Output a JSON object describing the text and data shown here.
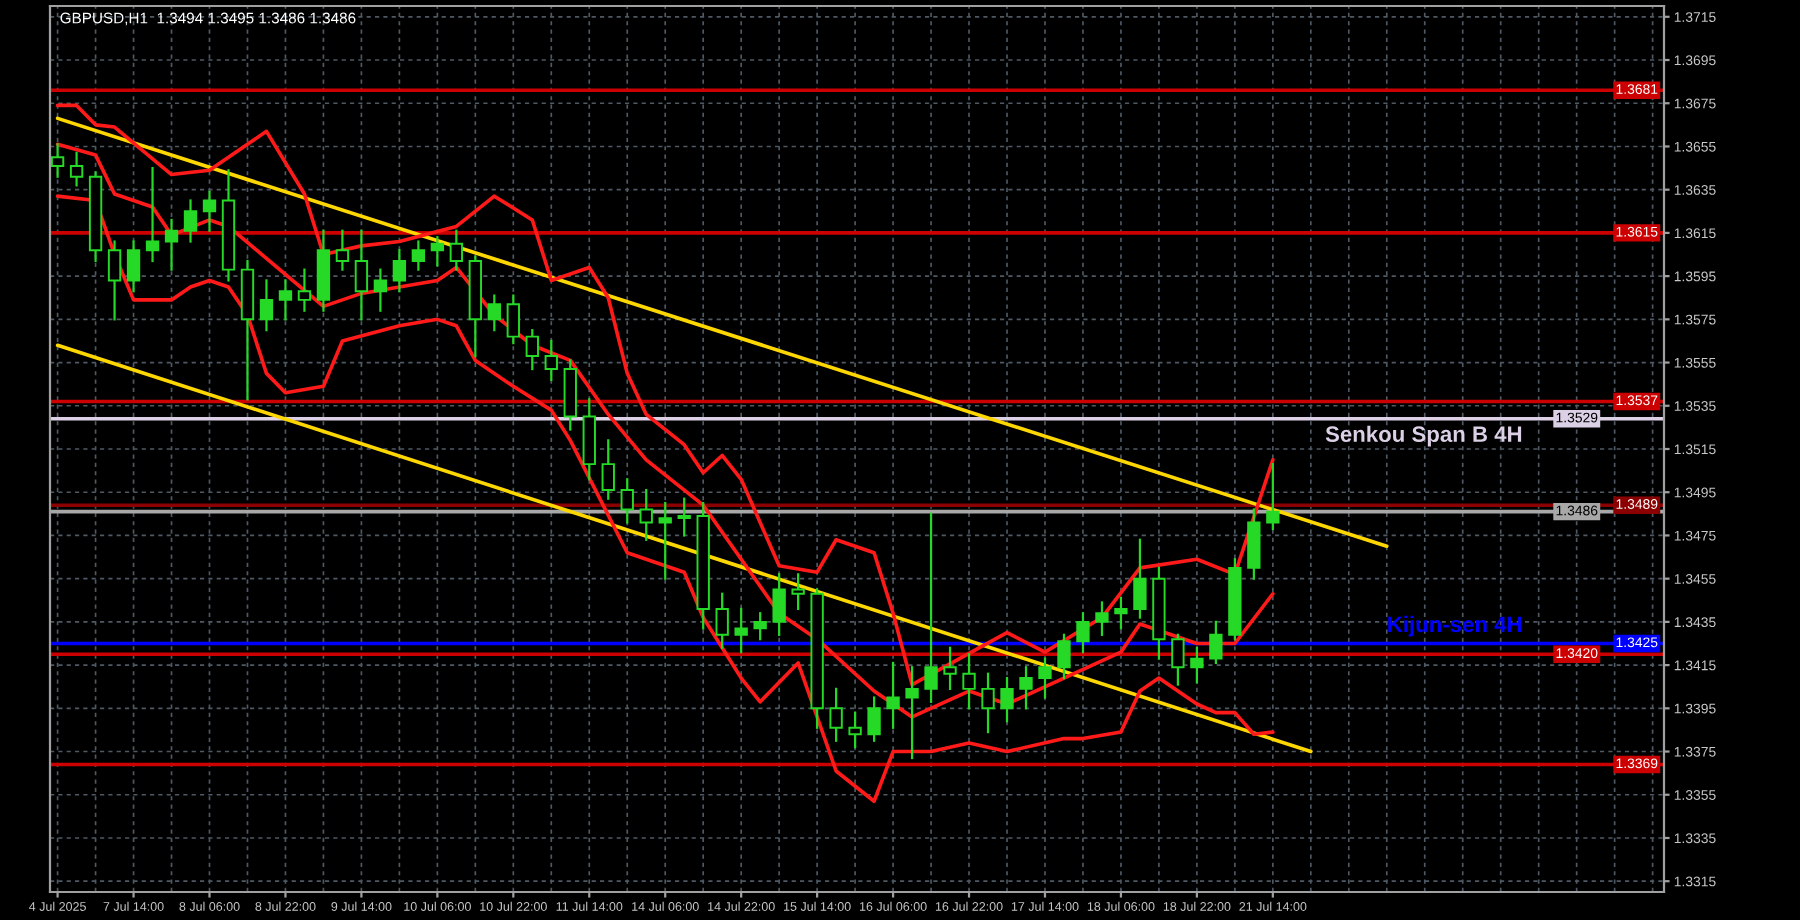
{
  "chart_data": {
    "type": "candlestick",
    "title": "GBPUSD,H1  1.3494 1.3495 1.3486 1.3486",
    "color": "#26d926",
    "categories": [
      "4 Jul 2025",
      null,
      null,
      null,
      "7 Jul 14:00",
      null,
      null,
      null,
      "8 Jul 06:00",
      null,
      null,
      null,
      "8 Jul 22:00",
      null,
      null,
      null,
      "9 Jul 14:00",
      null,
      null,
      null,
      "10 Jul 06:00",
      null,
      null,
      null,
      "10 Jul 22:00",
      null,
      null,
      null,
      "11 Jul 14:00",
      null,
      null,
      null,
      "14 Jul 06:00",
      null,
      null,
      null,
      "14 Jul 22:00",
      null,
      null,
      null,
      "15 Jul 14:00",
      null,
      null,
      null,
      "16 Jul 06:00",
      null,
      null,
      null,
      "16 Jul 22:00",
      null,
      null,
      null,
      "17 Jul 14:00",
      null,
      null,
      null,
      "18 Jul 06:00",
      null,
      null,
      null,
      "18 Jul 22:00",
      null,
      null,
      null,
      "21 Jul 14:00",
      null,
      null,
      null,
      null,
      null,
      null,
      null,
      null,
      null,
      null,
      null,
      null,
      null,
      null,
      null,
      null,
      null,
      null,
      null,
      null
    ],
    "ohlc": [
      [
        1.365,
        1.3656,
        1.3641,
        1.3646
      ],
      [
        1.3646,
        1.3652,
        1.3637,
        1.3641
      ],
      [
        1.3641,
        1.3643,
        1.3602,
        1.3607
      ],
      [
        1.3607,
        1.3611,
        1.3575,
        1.3593
      ],
      [
        1.3593,
        1.3611,
        1.3588,
        1.3607
      ],
      [
        1.3607,
        1.3645,
        1.3602,
        1.3611
      ],
      [
        1.3611,
        1.3621,
        1.3598,
        1.3616
      ],
      [
        1.3616,
        1.363,
        1.3611,
        1.3625
      ],
      [
        1.3625,
        1.3634,
        1.3616,
        1.363
      ],
      [
        1.363,
        1.3644,
        1.3593,
        1.3598
      ],
      [
        1.3598,
        1.3602,
        1.3538,
        1.3575
      ],
      [
        1.3575,
        1.3593,
        1.357,
        1.3584
      ],
      [
        1.3584,
        1.3593,
        1.3575,
        1.3588
      ],
      [
        1.3588,
        1.3598,
        1.3579,
        1.3584
      ],
      [
        1.3584,
        1.3616,
        1.3579,
        1.3607
      ],
      [
        1.3607,
        1.3616,
        1.3598,
        1.3602
      ],
      [
        1.3602,
        1.3616,
        1.3575,
        1.3588
      ],
      [
        1.3588,
        1.3598,
        1.3579,
        1.3593
      ],
      [
        1.3593,
        1.3607,
        1.3588,
        1.3602
      ],
      [
        1.3602,
        1.3611,
        1.3598,
        1.3607
      ],
      [
        1.3607,
        1.3613,
        1.36,
        1.361
      ],
      [
        1.361,
        1.3616,
        1.3598,
        1.3602
      ],
      [
        1.3602,
        1.3604,
        1.3558,
        1.3575
      ],
      [
        1.3575,
        1.3586,
        1.357,
        1.3582
      ],
      [
        1.3582,
        1.3586,
        1.3564,
        1.3567
      ],
      [
        1.3567,
        1.357,
        1.3552,
        1.3558
      ],
      [
        1.3558,
        1.3565,
        1.3547,
        1.3552
      ],
      [
        1.3552,
        1.3556,
        1.3524,
        1.353
      ],
      [
        1.353,
        1.3538,
        1.3501,
        1.3508
      ],
      [
        1.3508,
        1.3519,
        1.3492,
        1.3496
      ],
      [
        1.3496,
        1.3501,
        1.3481,
        1.3487
      ],
      [
        1.3487,
        1.3496,
        1.3473,
        1.3481
      ],
      [
        1.3481,
        1.349,
        1.3455,
        1.3483
      ],
      [
        1.3483,
        1.3492,
        1.3475,
        1.3484
      ],
      [
        1.3484,
        1.349,
        1.3432,
        1.3441
      ],
      [
        1.3441,
        1.3448,
        1.3423,
        1.3429
      ],
      [
        1.3429,
        1.3441,
        1.3421,
        1.3432
      ],
      [
        1.3432,
        1.3439,
        1.3427,
        1.3435
      ],
      [
        1.3435,
        1.3457,
        1.3429,
        1.345
      ],
      [
        1.345,
        1.3457,
        1.3441,
        1.3448
      ],
      [
        1.3448,
        1.345,
        1.3386,
        1.3395
      ],
      [
        1.3395,
        1.3404,
        1.338,
        1.3386
      ],
      [
        1.3386,
        1.3393,
        1.3377,
        1.3383
      ],
      [
        1.3383,
        1.34,
        1.338,
        1.3395
      ],
      [
        1.3395,
        1.3416,
        1.3386,
        1.34
      ],
      [
        1.34,
        1.3414,
        1.3372,
        1.3404
      ],
      [
        1.3404,
        1.3485,
        1.3398,
        1.3414
      ],
      [
        1.3414,
        1.3423,
        1.3404,
        1.3411
      ],
      [
        1.3411,
        1.342,
        1.3395,
        1.3404
      ],
      [
        1.3404,
        1.3411,
        1.3384,
        1.3395
      ],
      [
        1.3395,
        1.3409,
        1.3389,
        1.3404
      ],
      [
        1.3404,
        1.3414,
        1.3395,
        1.3409
      ],
      [
        1.3409,
        1.3418,
        1.34,
        1.3414
      ],
      [
        1.3414,
        1.3429,
        1.3409,
        1.3426
      ],
      [
        1.3426,
        1.3439,
        1.3421,
        1.3435
      ],
      [
        1.3435,
        1.3444,
        1.3429,
        1.3439
      ],
      [
        1.3439,
        1.3446,
        1.3432,
        1.3441
      ],
      [
        1.3441,
        1.3473,
        1.3437,
        1.3455
      ],
      [
        1.3455,
        1.346,
        1.3418,
        1.3427
      ],
      [
        1.3427,
        1.3429,
        1.3406,
        1.3414
      ],
      [
        1.3414,
        1.3423,
        1.3407,
        1.3418
      ],
      [
        1.3418,
        1.3435,
        1.3416,
        1.3429
      ],
      [
        1.3429,
        1.3464,
        1.3427,
        1.346
      ],
      [
        1.346,
        1.3487,
        1.3455,
        1.3481
      ],
      [
        1.3481,
        1.3508,
        1.3478,
        1.3486
      ],
      null,
      null,
      null,
      null,
      null,
      null,
      null,
      null,
      null,
      null,
      null,
      null,
      null,
      null,
      null,
      null,
      null,
      null,
      null,
      null
    ],
    "series": [
      {
        "type": "line",
        "color": "#ffd700",
        "values": [
          1.3668,
          null,
          null,
          null,
          null,
          null,
          null,
          null,
          null,
          null,
          null,
          null,
          null,
          null,
          null,
          null,
          null,
          null,
          null,
          null,
          null,
          null,
          null,
          null,
          null,
          null,
          null,
          null,
          null,
          null,
          null,
          null,
          null,
          null,
          null,
          null,
          null,
          null,
          null,
          null,
          null,
          null,
          null,
          null,
          null,
          null,
          null,
          null,
          null,
          null,
          null,
          null,
          null,
          null,
          null,
          null,
          null,
          null,
          null,
          null,
          null,
          null,
          null,
          null,
          null,
          null,
          null,
          null,
          null,
          null,
          1.347,
          null,
          null,
          null,
          null,
          null,
          null,
          null,
          null,
          null,
          null,
          null,
          null,
          null,
          null
        ]
      },
      {
        "type": "line",
        "color": "#ffd700",
        "values": [
          1.3563,
          null,
          null,
          null,
          null,
          null,
          null,
          null,
          null,
          null,
          null,
          null,
          null,
          null,
          null,
          null,
          null,
          null,
          null,
          null,
          null,
          null,
          null,
          null,
          null,
          null,
          null,
          null,
          null,
          null,
          null,
          null,
          null,
          null,
          null,
          null,
          null,
          null,
          null,
          null,
          null,
          null,
          null,
          null,
          null,
          null,
          null,
          null,
          null,
          null,
          null,
          null,
          null,
          null,
          null,
          null,
          null,
          null,
          null,
          null,
          null,
          null,
          null,
          null,
          null,
          null,
          1.3375,
          null,
          null,
          null,
          null,
          null,
          null,
          null,
          null,
          null,
          null,
          null,
          null,
          null,
          null,
          null,
          null,
          null,
          null
        ]
      },
      {
        "type": "line",
        "color": "#ff1a1a",
        "values": [
          1.3674,
          1.3674,
          1.3665,
          1.3664,
          null,
          null,
          1.3642,
          null,
          1.3644,
          null,
          1.3656,
          1.3662,
          null,
          1.3633,
          1.3605,
          null,
          1.3609,
          null,
          1.3611,
          null,
          null,
          1.3618,
          null,
          1.3632,
          null,
          1.3621,
          1.3593,
          null,
          1.3599,
          1.3585,
          1.355,
          1.3531,
          null,
          1.3517,
          1.3504,
          1.3512,
          1.3501,
          null,
          1.3461,
          null,
          1.3458,
          1.3473,
          null,
          1.3467,
          1.3439,
          1.3406,
          null,
          null,
          null,
          null,
          1.343,
          null,
          1.3421,
          null,
          null,
          1.3437,
          null,
          1.346,
          null,
          null,
          1.3464,
          null,
          1.3457,
          null,
          1.351,
          null,
          null,
          null,
          null,
          null,
          null,
          null,
          null,
          null,
          null,
          null,
          null,
          null,
          null,
          null,
          null,
          null,
          null,
          null,
          null
        ]
      },
      {
        "type": "line",
        "color": "#ff1a1a",
        "values": [
          1.3656,
          null,
          1.3651,
          1.3633,
          null,
          1.3627,
          1.3614,
          null,
          1.3621,
          1.3618,
          null,
          null,
          null,
          null,
          1.3581,
          null,
          1.3587,
          null,
          null,
          null,
          1.3593,
          1.3599,
          null,
          1.3577,
          null,
          1.3563,
          null,
          1.3556,
          null,
          1.3531,
          null,
          1.351,
          null,
          null,
          1.3489,
          null,
          null,
          null,
          1.3439,
          null,
          1.3427,
          null,
          null,
          1.3403,
          null,
          1.3391,
          null,
          null,
          1.3403,
          null,
          1.3397,
          null,
          null,
          1.3409,
          null,
          null,
          1.3421,
          1.3434,
          null,
          null,
          1.3425,
          null,
          1.3425,
          null,
          1.3448,
          null,
          null,
          null,
          null,
          null,
          null,
          null,
          null,
          null,
          null,
          null,
          null,
          null,
          null,
          null,
          null,
          null,
          null,
          null,
          null
        ]
      },
      {
        "type": "line",
        "color": "#ff1a1a",
        "values": [
          1.3632,
          null,
          1.363,
          1.3605,
          1.3584,
          null,
          1.3584,
          1.359,
          1.3593,
          1.359,
          1.3577,
          1.355,
          1.3541,
          null,
          1.3544,
          1.3565,
          null,
          null,
          1.3572,
          null,
          1.3575,
          1.3572,
          1.3556,
          null,
          1.3544,
          null,
          1.3533,
          1.3519,
          null,
          null,
          1.3467,
          null,
          1.3461,
          1.3458,
          1.3437,
          null,
          1.3409,
          1.3398,
          null,
          1.3416,
          null,
          1.3366,
          null,
          1.3352,
          1.3375,
          null,
          1.3375,
          null,
          1.3379,
          null,
          1.3375,
          null,
          null,
          1.3381,
          1.3381,
          null,
          1.3384,
          1.3403,
          1.3409,
          null,
          1.3397,
          1.3393,
          1.3393,
          1.3383,
          1.3384,
          null,
          null,
          null,
          null,
          null,
          null,
          null,
          null,
          null,
          null,
          null,
          null,
          null,
          null,
          null,
          null,
          null,
          null,
          null,
          null
        ]
      }
    ],
    "ref_lines": [
      {
        "axis": "y",
        "value": 1.3681,
        "label": "1.3681",
        "color": "#cc0000"
      },
      {
        "axis": "y",
        "value": 1.3615,
        "label": "1.3615",
        "color": "#cc0000"
      },
      {
        "axis": "y",
        "value": 1.3537,
        "label": "1.3537",
        "color": "#cc0000"
      },
      {
        "axis": "y",
        "value": 1.3529,
        "label": "1.3529",
        "color": "#dcd0e6"
      },
      {
        "axis": "y",
        "value": 1.3489,
        "label": "1.3489",
        "color": "#8b0000"
      },
      {
        "axis": "y",
        "value": 1.3486,
        "label": "1.3486",
        "color": "#a8a8a8"
      },
      {
        "axis": "y",
        "value": 1.3425,
        "label": "1.3425",
        "color": "#0000ff"
      },
      {
        "axis": "y",
        "value": 1.342,
        "label": "1.3420",
        "color": "#cc0000"
      },
      {
        "axis": "y",
        "value": 1.3369,
        "label": "1.3369",
        "color": "#cc0000"
      }
    ],
    "annotations": [
      {
        "text": "Senkou Span B 4H",
        "y": 1.3529
      },
      {
        "text": "Kijun-sen 4H",
        "y": 1.3425
      }
    ],
    "ylim": [
      1.331,
      1.372
    ],
    "yticks": [
      1.3315,
      1.3335,
      1.3355,
      1.3375,
      1.3395,
      1.3415,
      1.3435,
      1.3455,
      1.3475,
      1.3495,
      1.3515,
      1.3535,
      1.3555,
      1.3575,
      1.3595,
      1.3615,
      1.3635,
      1.3655,
      1.3675,
      1.3695,
      1.3715
    ],
    "grid": true
  }
}
